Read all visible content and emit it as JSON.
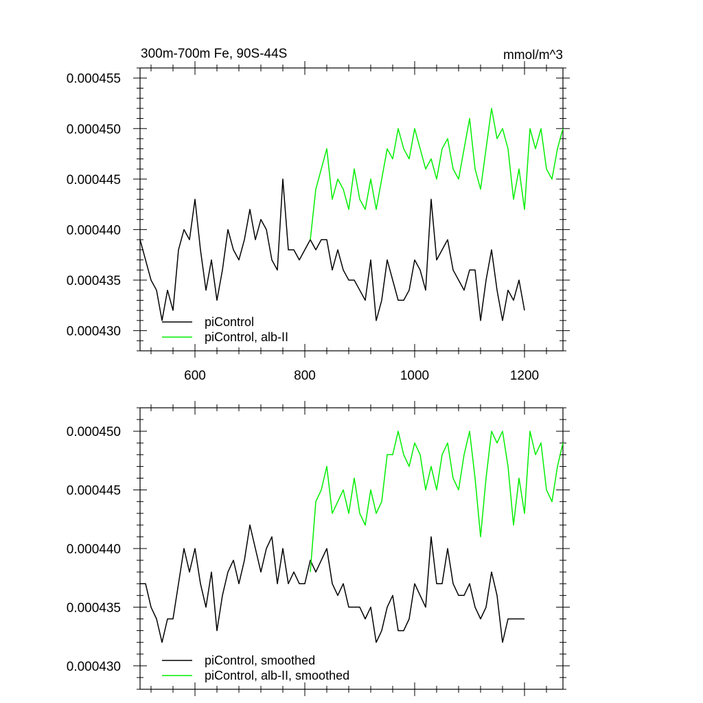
{
  "chart_data": [
    {
      "type": "line",
      "title": "300m-700m Fe, 90S-44S",
      "units": "mmol/m^3",
      "xlim": [
        500,
        1270
      ],
      "ylim": [
        0.000428,
        0.000456
      ],
      "xticks": [
        600,
        800,
        1000,
        1200
      ],
      "xtick_labels": [
        "600",
        "800",
        "1000",
        "1200"
      ],
      "yticks": [
        0.00043,
        0.000435,
        0.00044,
        0.000445,
        0.00045,
        0.000455
      ],
      "ytick_labels": [
        "0.000430",
        "0.000435",
        "0.000440",
        "0.000445",
        "0.000450",
        "0.000455"
      ],
      "legend_position": "bottom-left",
      "series": [
        {
          "name": "piControl",
          "color": "#000000",
          "x": [
            500,
            510,
            520,
            530,
            540,
            550,
            560,
            570,
            580,
            590,
            600,
            610,
            620,
            630,
            640,
            650,
            660,
            670,
            680,
            690,
            700,
            710,
            720,
            730,
            740,
            750,
            760,
            770,
            780,
            790,
            800,
            810,
            820,
            830,
            840,
            850,
            860,
            870,
            880,
            890,
            900,
            910,
            920,
            930,
            940,
            950,
            960,
            970,
            980,
            990,
            1000,
            1010,
            1020,
            1030,
            1040,
            1050,
            1060,
            1070,
            1080,
            1090,
            1100,
            1110,
            1120,
            1130,
            1140,
            1150,
            1160,
            1170,
            1180,
            1190,
            1200
          ],
          "y": [
            0.000439,
            0.000437,
            0.000435,
            0.000434,
            0.000431,
            0.000434,
            0.000432,
            0.000438,
            0.00044,
            0.000439,
            0.000443,
            0.000438,
            0.000434,
            0.000437,
            0.000433,
            0.000436,
            0.00044,
            0.000438,
            0.000437,
            0.000439,
            0.000442,
            0.000439,
            0.000441,
            0.00044,
            0.000437,
            0.000436,
            0.000445,
            0.000438,
            0.000438,
            0.000437,
            0.000438,
            0.000439,
            0.000438,
            0.000439,
            0.000439,
            0.000436,
            0.000438,
            0.000436,
            0.000435,
            0.000435,
            0.000434,
            0.000433,
            0.000437,
            0.000431,
            0.000433,
            0.000437,
            0.000435,
            0.000433,
            0.000433,
            0.000434,
            0.000437,
            0.000436,
            0.000434,
            0.000443,
            0.000437,
            0.000438,
            0.000439,
            0.000436,
            0.000435,
            0.000434,
            0.000436,
            0.000436,
            0.000431,
            0.000435,
            0.000438,
            0.000434,
            0.000431,
            0.000434,
            0.000433,
            0.000435,
            0.000432
          ]
        },
        {
          "name": "piControl, alb-II",
          "color": "#00ee00",
          "x": [
            810,
            820,
            830,
            840,
            850,
            860,
            870,
            880,
            890,
            900,
            910,
            920,
            930,
            940,
            950,
            960,
            970,
            980,
            990,
            1000,
            1010,
            1020,
            1030,
            1040,
            1050,
            1060,
            1070,
            1080,
            1090,
            1100,
            1110,
            1120,
            1130,
            1140,
            1150,
            1160,
            1170,
            1180,
            1190,
            1200,
            1210,
            1220,
            1230,
            1240,
            1250,
            1260,
            1270
          ],
          "y": [
            0.000439,
            0.000444,
            0.000446,
            0.000448,
            0.000443,
            0.000445,
            0.000444,
            0.000442,
            0.000446,
            0.000443,
            0.000442,
            0.000445,
            0.000442,
            0.000445,
            0.000448,
            0.000447,
            0.00045,
            0.000448,
            0.000447,
            0.00045,
            0.000448,
            0.000446,
            0.000447,
            0.000445,
            0.000448,
            0.000449,
            0.000446,
            0.000445,
            0.000448,
            0.000451,
            0.000446,
            0.000444,
            0.000448,
            0.000452,
            0.000449,
            0.00045,
            0.000448,
            0.000443,
            0.000446,
            0.000442,
            0.00045,
            0.000448,
            0.00045,
            0.000446,
            0.000445,
            0.000448,
            0.00045
          ]
        }
      ]
    },
    {
      "type": "line",
      "title": "",
      "xlim": [
        500,
        1270
      ],
      "ylim": [
        0.000428,
        0.000452
      ],
      "xticks": [
        600,
        800,
        1000,
        1200
      ],
      "yticks": [
        0.00043,
        0.000435,
        0.00044,
        0.000445,
        0.00045
      ],
      "ytick_labels": [
        "0.000430",
        "0.000435",
        "0.000440",
        "0.000445",
        "0.000450"
      ],
      "legend_position": "bottom-left",
      "series": [
        {
          "name": "piControl, smoothed",
          "color": "#000000",
          "x": [
            500,
            510,
            520,
            530,
            540,
            550,
            560,
            570,
            580,
            590,
            600,
            610,
            620,
            630,
            640,
            650,
            660,
            670,
            680,
            690,
            700,
            710,
            720,
            730,
            740,
            750,
            760,
            770,
            780,
            790,
            800,
            810,
            820,
            830,
            840,
            850,
            860,
            870,
            880,
            890,
            900,
            910,
            920,
            930,
            940,
            950,
            960,
            970,
            980,
            990,
            1000,
            1010,
            1020,
            1030,
            1040,
            1050,
            1060,
            1070,
            1080,
            1090,
            1100,
            1110,
            1120,
            1130,
            1140,
            1150,
            1160,
            1170,
            1180,
            1190,
            1200
          ],
          "y": [
            0.000437,
            0.000437,
            0.000435,
            0.000434,
            0.000432,
            0.000434,
            0.000434,
            0.000437,
            0.00044,
            0.000438,
            0.00044,
            0.000437,
            0.000435,
            0.000438,
            0.000433,
            0.000436,
            0.000438,
            0.000439,
            0.000437,
            0.000439,
            0.000442,
            0.00044,
            0.000438,
            0.00044,
            0.000441,
            0.000437,
            0.00044,
            0.000437,
            0.000438,
            0.000437,
            0.000437,
            0.000439,
            0.000438,
            0.000439,
            0.00044,
            0.000437,
            0.000436,
            0.000437,
            0.000435,
            0.000435,
            0.000435,
            0.000434,
            0.000435,
            0.000432,
            0.000433,
            0.000435,
            0.000436,
            0.000433,
            0.000433,
            0.000434,
            0.000437,
            0.000436,
            0.000435,
            0.000441,
            0.000437,
            0.000437,
            0.00044,
            0.000437,
            0.000436,
            0.000436,
            0.000437,
            0.000435,
            0.000434,
            0.000435,
            0.000438,
            0.000436,
            0.000432,
            0.000434,
            0.000434,
            0.000434,
            0.000434
          ]
        },
        {
          "name": "piControl, alb-II, smoothed",
          "color": "#00ee00",
          "x": [
            810,
            820,
            830,
            840,
            850,
            860,
            870,
            880,
            890,
            900,
            910,
            920,
            930,
            940,
            950,
            960,
            970,
            980,
            990,
            1000,
            1010,
            1020,
            1030,
            1040,
            1050,
            1060,
            1070,
            1080,
            1090,
            1100,
            1110,
            1120,
            1130,
            1140,
            1150,
            1160,
            1170,
            1180,
            1190,
            1200,
            1210,
            1220,
            1230,
            1240,
            1250,
            1260,
            1270
          ],
          "y": [
            0.000438,
            0.000444,
            0.000445,
            0.000447,
            0.000443,
            0.000444,
            0.000445,
            0.000443,
            0.000446,
            0.000443,
            0.000442,
            0.000445,
            0.000443,
            0.000444,
            0.000448,
            0.000448,
            0.00045,
            0.000448,
            0.000447,
            0.000449,
            0.000448,
            0.000445,
            0.000447,
            0.000445,
            0.000448,
            0.000449,
            0.000446,
            0.000445,
            0.000448,
            0.00045,
            0.000446,
            0.000441,
            0.000446,
            0.00045,
            0.000449,
            0.00045,
            0.000447,
            0.000442,
            0.000446,
            0.000443,
            0.00045,
            0.000448,
            0.000449,
            0.000445,
            0.000444,
            0.000447,
            0.000449
          ]
        }
      ]
    }
  ]
}
